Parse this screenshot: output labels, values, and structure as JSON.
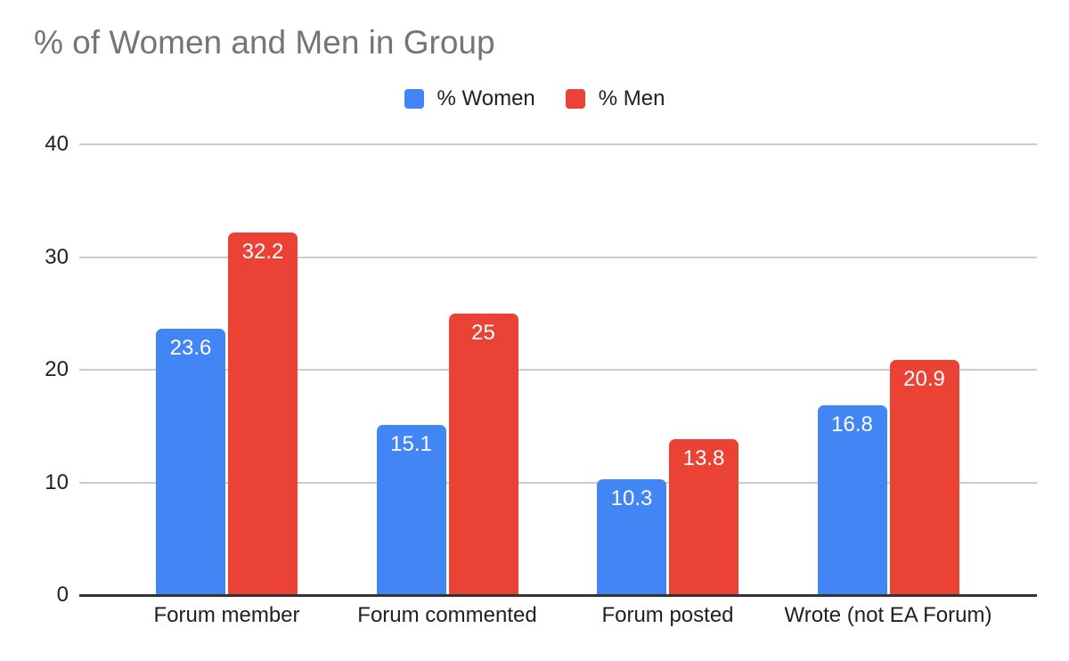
{
  "title": "% of Women and Men in Group",
  "legend": [
    {
      "label": "% Women",
      "color": "#4285F4"
    },
    {
      "label": "% Men",
      "color": "#EA4335"
    }
  ],
  "chart_data": {
    "type": "bar",
    "title": "% of Women and Men in Group",
    "categories": [
      "Forum member",
      "Forum commented",
      "Forum posted",
      "Wrote (not EA Forum)"
    ],
    "series": [
      {
        "name": "% Women",
        "color": "#4285F4",
        "values": [
          23.6,
          15.1,
          10.3,
          16.8
        ]
      },
      {
        "name": "% Men",
        "color": "#EA4335",
        "values": [
          32.2,
          25,
          13.8,
          20.9
        ]
      }
    ],
    "value_labels": [
      [
        "23.6",
        "15.1",
        "10.3",
        "16.8"
      ],
      [
        "32.2",
        "25",
        "13.8",
        "20.9"
      ]
    ],
    "xlabel": "",
    "ylabel": "",
    "ylim": [
      0,
      40
    ],
    "yticks": [
      0,
      10,
      20,
      30,
      40
    ],
    "ytick_labels": [
      "0",
      "10",
      "20",
      "30",
      "40"
    ],
    "grid": true,
    "legend_position": "top-center",
    "data_label_position": "inside-top",
    "colors": {
      "grid": "#cccccc",
      "baseline": "#333333",
      "axis_text": "#212121",
      "title_text": "#757575",
      "bar_label_text": "#ffffff",
      "background": "#ffffff"
    }
  }
}
